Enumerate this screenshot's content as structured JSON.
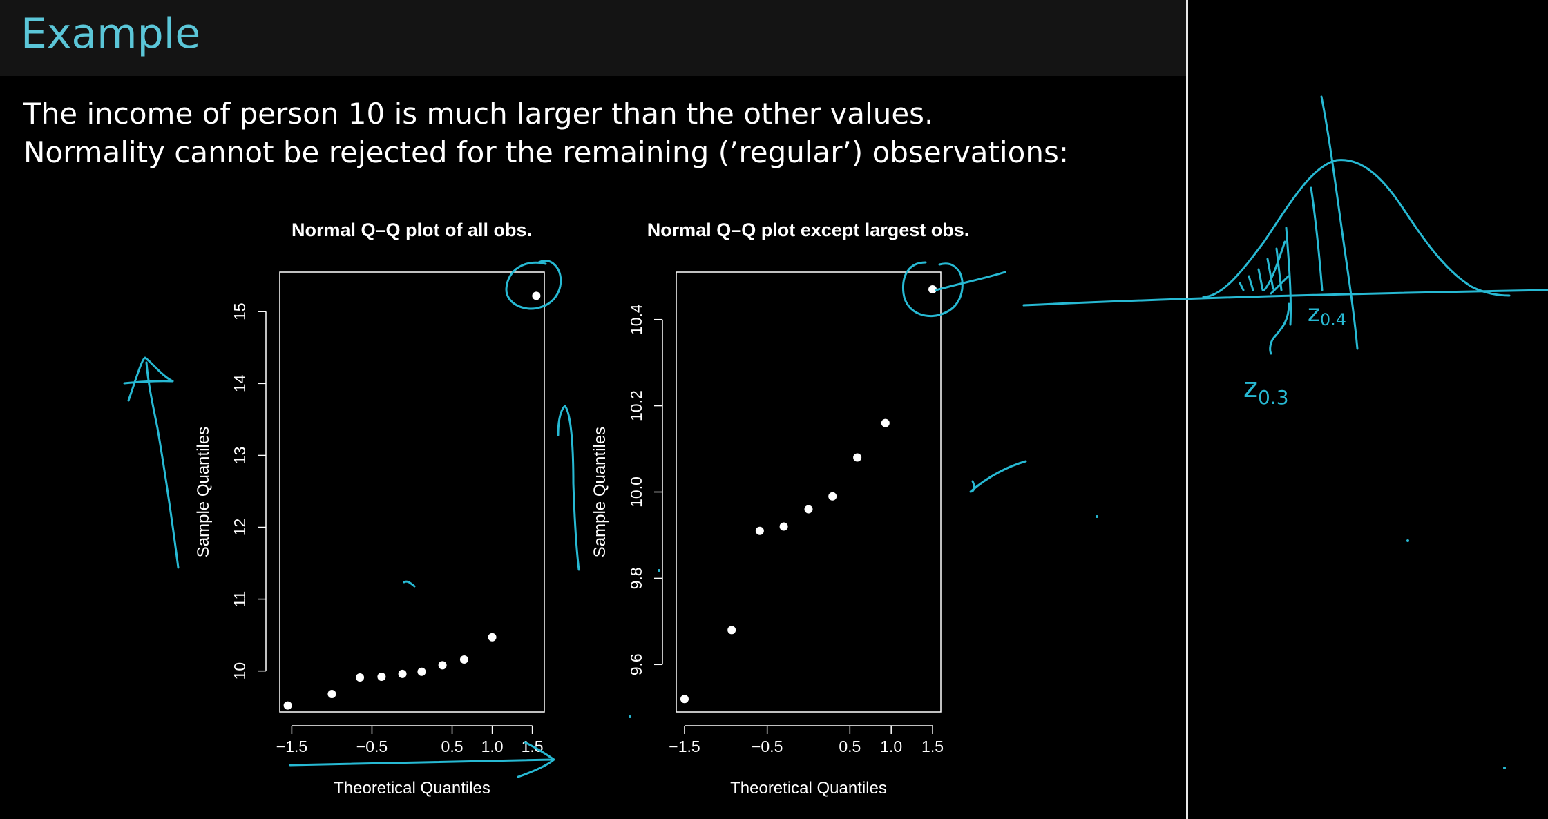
{
  "slide": {
    "title": "Example",
    "lines": [
      "The income of person 10 is much larger than the other values.",
      "Normality cannot be rejected for the remaining (’regular’) observations:"
    ]
  },
  "colors": {
    "title": "#5bc6d8",
    "ink": "#27b9d3",
    "points": "#ffffff",
    "background": "#000000"
  },
  "annotations": {
    "z_label_1": "z0.4",
    "z_label_2": "z0.3"
  },
  "chart_data": [
    {
      "type": "scatter",
      "title": "Normal Q–Q plot of all obs.",
      "xlabel": "Theoretical Quantiles",
      "ylabel": "Sample Quantiles",
      "xlim": [
        -1.65,
        1.65
      ],
      "ylim": [
        9.43,
        15.55
      ],
      "xticks": [
        -1.5,
        -0.5,
        0.5,
        1.0,
        1.5
      ],
      "xtick_labels": [
        "−1.5",
        "−0.5",
        "0.5",
        "1.0",
        "1.5"
      ],
      "yticks": [
        10,
        11,
        12,
        13,
        14,
        15
      ],
      "ytick_labels": [
        "10",
        "11",
        "12",
        "13",
        "14",
        "15"
      ],
      "x": [
        -1.55,
        -1.0,
        -0.65,
        -0.38,
        -0.12,
        0.12,
        0.38,
        0.65,
        1.0,
        1.55
      ],
      "y": [
        9.52,
        9.68,
        9.91,
        9.92,
        9.96,
        9.99,
        10.08,
        10.16,
        10.47,
        15.22
      ]
    },
    {
      "type": "scatter",
      "title": "Normal Q–Q plot except largest obs.",
      "xlabel": "Theoretical Quantiles",
      "ylabel": "Sample Quantiles",
      "xlim": [
        -1.6,
        1.6
      ],
      "ylim": [
        9.49,
        10.51
      ],
      "xticks": [
        -1.5,
        -0.5,
        0.5,
        1.0,
        1.5
      ],
      "xtick_labels": [
        "−1.5",
        "−0.5",
        "0.5",
        "1.0",
        "1.5"
      ],
      "yticks": [
        9.6,
        9.8,
        10.0,
        10.2,
        10.4
      ],
      "ytick_labels": [
        "9.6",
        "9.8",
        "10.0",
        "10.2",
        "10.4"
      ],
      "x": [
        -1.5,
        -0.93,
        -0.59,
        -0.3,
        0.0,
        0.29,
        0.59,
        0.93,
        1.5
      ],
      "y": [
        9.52,
        9.68,
        9.91,
        9.92,
        9.96,
        9.99,
        10.08,
        10.16,
        10.47
      ]
    }
  ]
}
